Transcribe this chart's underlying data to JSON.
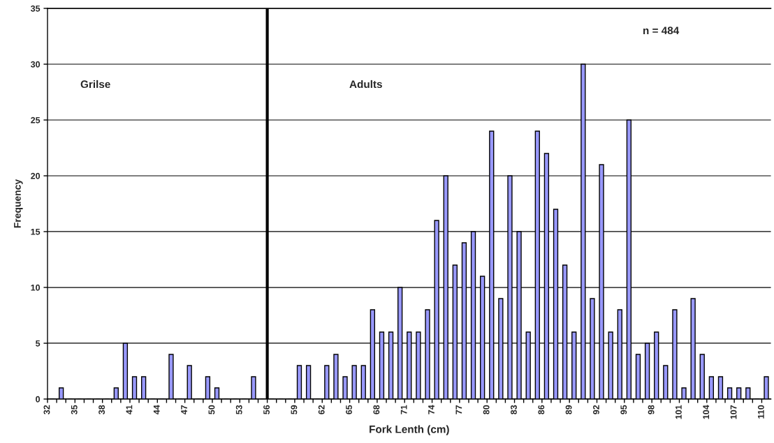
{
  "chart_data": {
    "type": "histogram",
    "xlabel": "Fork Lenth (cm)",
    "ylabel": "Frequency",
    "bins": [
      32,
      33,
      34,
      35,
      36,
      37,
      38,
      39,
      40,
      41,
      42,
      43,
      44,
      45,
      46,
      47,
      48,
      49,
      50,
      51,
      52,
      53,
      54,
      55,
      56,
      57,
      58,
      59,
      60,
      61,
      62,
      63,
      64,
      65,
      66,
      67,
      68,
      69,
      70,
      71,
      72,
      73,
      74,
      75,
      76,
      77,
      78,
      79,
      80,
      81,
      82,
      83,
      84,
      85,
      86,
      87,
      88,
      89,
      90,
      91,
      92,
      93,
      94,
      95,
      96,
      97,
      98,
      99,
      100,
      101,
      102,
      103,
      104,
      105,
      106,
      107,
      108,
      109,
      110,
      111
    ],
    "values": [
      0,
      1,
      0,
      0,
      0,
      0,
      0,
      1,
      5,
      2,
      2,
      0,
      0,
      4,
      0,
      3,
      0,
      2,
      1,
      0,
      0,
      0,
      2,
      0,
      0,
      0,
      0,
      3,
      3,
      0,
      3,
      4,
      2,
      3,
      3,
      8,
      6,
      6,
      10,
      6,
      6,
      8,
      16,
      20,
      12,
      14,
      15,
      11,
      24,
      9,
      20,
      15,
      6,
      24,
      22,
      17,
      12,
      6,
      30,
      9,
      21,
      6,
      8,
      25,
      4,
      5,
      6,
      3,
      8,
      1,
      9,
      4,
      2,
      2,
      1,
      1,
      1,
      0,
      2
    ],
    "color": "#9999ff",
    "xlim": [
      32,
      111
    ],
    "xticks": [
      32,
      {
        "value": 33,
        "label": null
      },
      {
        "value": 34,
        "label": null
      },
      35,
      {
        "value": 36,
        "label": null
      },
      {
        "value": 37,
        "label": null
      },
      38,
      {
        "value": 39,
        "label": null
      },
      {
        "value": 40,
        "label": null
      },
      41,
      {
        "value": 42,
        "label": null
      },
      {
        "value": 43,
        "label": null
      },
      44,
      {
        "value": 45,
        "label": null
      },
      {
        "value": 46,
        "label": null
      },
      47,
      {
        "value": 48,
        "label": null
      },
      {
        "value": 49,
        "label": null
      },
      50,
      {
        "value": 51,
        "label": null
      },
      {
        "value": 52,
        "label": null
      },
      53,
      {
        "value": 54,
        "label": null
      },
      {
        "value": 55,
        "label": null
      },
      56,
      {
        "value": 57,
        "label": null
      },
      {
        "value": 58,
        "label": null
      },
      59,
      {
        "value": 60,
        "label": null
      },
      {
        "value": 61,
        "label": null
      },
      62,
      {
        "value": 63,
        "label": null
      },
      {
        "value": 64,
        "label": null
      },
      65,
      {
        "value": 66,
        "label": null
      },
      {
        "value": 67,
        "label": null
      },
      68,
      {
        "value": 69,
        "label": null
      },
      {
        "value": 70,
        "label": null
      },
      71,
      {
        "value": 72,
        "label": null
      },
      {
        "value": 73,
        "label": null
      },
      74,
      {
        "value": 75,
        "label": null
      },
      {
        "value": 76,
        "label": null
      },
      77,
      {
        "value": 78,
        "label": null
      },
      {
        "value": 79,
        "label": null
      },
      80,
      {
        "value": 81,
        "label": null
      },
      {
        "value": 82,
        "label": null
      },
      83,
      {
        "value": 84,
        "label": null
      },
      {
        "value": 85,
        "label": null
      },
      86,
      {
        "value": 87,
        "label": null
      },
      {
        "value": 88,
        "label": null
      },
      89,
      {
        "value": 90,
        "label": null
      },
      {
        "value": 91,
        "label": null
      },
      92,
      {
        "value": 93,
        "label": null
      },
      {
        "value": 94,
        "label": null
      },
      95,
      {
        "value": 96,
        "label": null
      },
      {
        "value": 97,
        "label": null
      },
      98,
      {
        "value": 99,
        "label": null
      },
      {
        "value": 100,
        "label": null
      },
      101,
      {
        "value": 102,
        "label": null
      },
      {
        "value": 103,
        "label": null
      },
      104,
      {
        "value": 105,
        "label": null
      },
      {
        "value": 106,
        "label": null
      },
      107,
      {
        "value": 108,
        "label": null
      },
      {
        "value": 109,
        "label": null
      },
      110
    ],
    "ylim": [
      0,
      35
    ],
    "yticks": [
      0,
      5,
      10,
      15,
      20,
      25,
      30,
      35
    ],
    "grid": "y",
    "ref_lines": [
      {
        "axis": "x",
        "value": 56,
        "color": "#000000"
      }
    ],
    "annotations": [
      "Grilse",
      "Adults",
      "n = 484"
    ]
  }
}
